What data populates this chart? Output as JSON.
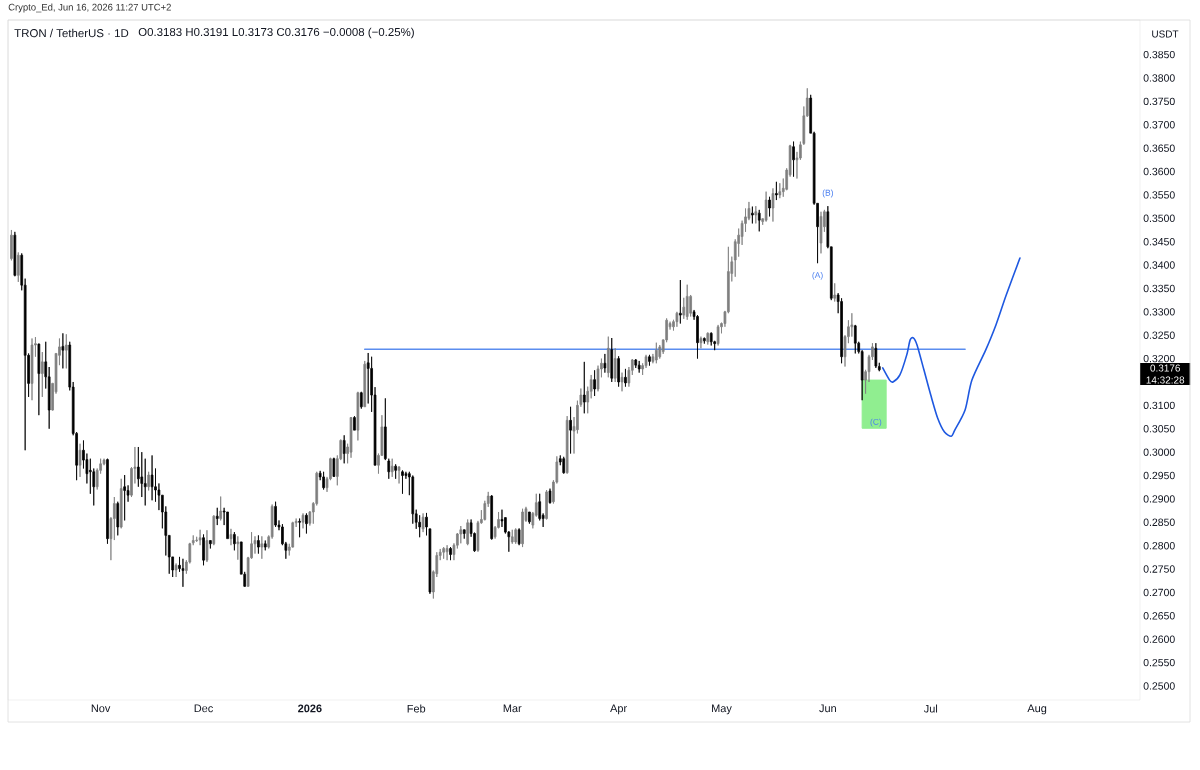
{
  "chart_data": {
    "type": "candlestick",
    "title": "TRON / TetherUS · 1D",
    "subtitle": "O0.3183 H0.3191 L0.3173 C0.3176 −0.0008 (−0.25%)",
    "ylabel": "USDT",
    "x": [
      "2025-10-06",
      "2025-10-07",
      "2025-10-08",
      "2025-10-09",
      "2025-10-10",
      "2025-10-11",
      "2025-10-12",
      "2025-10-13",
      "2025-10-14",
      "2025-10-15",
      "2025-10-16",
      "2025-10-17",
      "2025-10-18",
      "2025-10-19",
      "2025-10-20",
      "2025-10-21",
      "2025-10-22",
      "2025-10-23",
      "2025-10-24",
      "2025-10-25",
      "2025-10-26",
      "2025-10-27",
      "2025-10-28",
      "2025-10-29",
      "2025-10-30",
      "2025-10-31",
      "2025-11-01",
      "2025-11-02",
      "2025-11-03",
      "2025-11-04",
      "2025-11-05",
      "2025-11-06",
      "2025-11-07",
      "2025-11-08",
      "2025-11-09",
      "2025-11-10",
      "2025-11-11",
      "2025-11-12",
      "2025-11-13",
      "2025-11-14",
      "2025-11-15",
      "2025-11-16",
      "2025-11-17",
      "2025-11-18",
      "2025-11-19",
      "2025-11-20",
      "2025-11-21",
      "2025-11-22",
      "2025-11-23",
      "2025-11-24",
      "2025-11-25",
      "2025-11-26",
      "2025-11-27",
      "2025-11-28",
      "2025-11-29",
      "2025-11-30",
      "2025-12-01",
      "2025-12-02",
      "2025-12-03",
      "2025-12-04",
      "2025-12-05",
      "2025-12-06",
      "2025-12-07",
      "2025-12-08",
      "2025-12-09",
      "2025-12-10",
      "2025-12-11",
      "2025-12-12",
      "2025-12-13",
      "2025-12-14",
      "2025-12-15",
      "2025-12-16",
      "2025-12-17",
      "2025-12-18",
      "2025-12-19",
      "2025-12-20",
      "2025-12-21",
      "2025-12-22",
      "2025-12-23",
      "2025-12-24",
      "2025-12-25",
      "2025-12-26",
      "2025-12-27",
      "2025-12-28",
      "2025-12-29",
      "2025-12-30",
      "2025-12-31",
      "2026-01-01",
      "2026-01-02",
      "2026-01-03",
      "2026-01-04",
      "2026-01-05",
      "2026-01-06",
      "2026-01-07",
      "2026-01-08",
      "2026-01-09",
      "2026-01-10",
      "2026-01-11",
      "2026-01-12",
      "2026-01-13",
      "2026-01-14",
      "2026-01-15",
      "2026-01-16",
      "2026-01-17",
      "2026-01-18",
      "2026-01-19",
      "2026-01-20",
      "2026-01-21",
      "2026-01-22",
      "2026-01-23",
      "2026-01-24",
      "2026-01-25",
      "2026-01-26",
      "2026-01-27",
      "2026-01-28",
      "2026-01-29",
      "2026-01-30",
      "2026-01-31",
      "2026-02-01",
      "2026-02-02",
      "2026-02-03",
      "2026-02-04",
      "2026-02-05",
      "2026-02-06",
      "2026-02-07",
      "2026-02-08",
      "2026-02-09",
      "2026-02-10",
      "2026-02-11",
      "2026-02-12",
      "2026-02-13",
      "2026-02-14",
      "2026-02-15",
      "2026-02-16",
      "2026-02-17",
      "2026-02-18",
      "2026-02-19",
      "2026-02-20",
      "2026-02-21",
      "2026-02-22",
      "2026-02-23",
      "2026-02-24",
      "2026-02-25",
      "2026-02-26",
      "2026-02-27",
      "2026-02-28",
      "2026-03-01",
      "2026-03-02",
      "2026-03-03",
      "2026-03-04",
      "2026-03-05",
      "2026-03-06",
      "2026-03-07",
      "2026-03-08",
      "2026-03-09",
      "2026-03-10",
      "2026-03-11",
      "2026-03-12",
      "2026-03-13",
      "2026-03-14",
      "2026-03-15",
      "2026-03-16",
      "2026-03-17",
      "2026-03-18",
      "2026-03-19",
      "2026-03-20",
      "2026-03-21",
      "2026-03-22",
      "2026-03-23",
      "2026-03-24",
      "2026-03-25",
      "2026-03-26",
      "2026-03-27",
      "2026-03-28",
      "2026-03-29",
      "2026-03-30",
      "2026-03-31",
      "2026-04-01",
      "2026-04-02",
      "2026-04-03",
      "2026-04-04",
      "2026-04-05",
      "2026-04-06",
      "2026-04-07",
      "2026-04-08",
      "2026-04-09",
      "2026-04-10",
      "2026-04-11",
      "2026-04-12",
      "2026-04-13",
      "2026-04-14",
      "2026-04-15",
      "2026-04-16",
      "2026-04-17",
      "2026-04-18",
      "2026-04-19",
      "2026-04-20",
      "2026-04-21",
      "2026-04-22",
      "2026-04-23",
      "2026-04-24",
      "2026-04-25",
      "2026-04-26",
      "2026-04-27",
      "2026-04-28",
      "2026-04-29",
      "2026-04-30",
      "2026-05-01",
      "2026-05-02",
      "2026-05-03",
      "2026-05-04",
      "2026-05-05",
      "2026-05-06",
      "2026-05-07",
      "2026-05-08",
      "2026-05-09",
      "2026-05-10",
      "2026-05-11",
      "2026-05-12",
      "2026-05-13",
      "2026-05-14",
      "2026-05-15",
      "2026-05-16",
      "2026-05-17",
      "2026-05-18",
      "2026-05-19",
      "2026-05-20",
      "2026-05-21",
      "2026-05-22",
      "2026-05-23",
      "2026-05-24",
      "2026-05-25",
      "2026-05-26",
      "2026-05-27",
      "2026-05-28",
      "2026-05-29",
      "2026-05-30",
      "2026-05-31",
      "2026-06-01",
      "2026-06-02",
      "2026-06-03",
      "2026-06-04",
      "2026-06-05",
      "2026-06-06",
      "2026-06-07",
      "2026-06-08",
      "2026-06-09",
      "2026-06-10",
      "2026-06-11",
      "2026-06-12",
      "2026-06-13",
      "2026-06-14",
      "2026-06-15",
      "2026-06-16"
    ],
    "ohlc": [
      [
        0.3414,
        0.3475,
        0.341,
        0.3464
      ],
      [
        0.3464,
        0.3471,
        0.3376,
        0.3378
      ],
      [
        0.3378,
        0.3427,
        0.3364,
        0.3421
      ],
      [
        0.3421,
        0.3425,
        0.3346,
        0.3357
      ],
      [
        0.3357,
        0.3371,
        0.3004,
        0.3207
      ],
      [
        0.3207,
        0.3211,
        0.3118,
        0.3147
      ],
      [
        0.3147,
        0.3243,
        0.3111,
        0.3229
      ],
      [
        0.3229,
        0.3246,
        0.3204,
        0.3232
      ],
      [
        0.3231,
        0.3232,
        0.3079,
        0.3168
      ],
      [
        0.3168,
        0.3214,
        0.3118,
        0.3193
      ],
      [
        0.3193,
        0.3236,
        0.3136,
        0.3161
      ],
      [
        0.3161,
        0.3182,
        0.305,
        0.309
      ],
      [
        0.309,
        0.3148,
        0.3089,
        0.3147
      ],
      [
        0.3129,
        0.3211,
        0.3125,
        0.3211
      ],
      [
        0.3207,
        0.3243,
        0.3186,
        0.3225
      ],
      [
        0.3226,
        0.3254,
        0.3179,
        0.3218
      ],
      [
        0.3218,
        0.3252,
        0.3179,
        0.3229
      ],
      [
        0.3229,
        0.3236,
        0.3132,
        0.3139
      ],
      [
        0.3139,
        0.315,
        0.3036,
        0.304
      ],
      [
        0.304,
        0.3043,
        0.294,
        0.2972
      ],
      [
        0.2972,
        0.3018,
        0.2947,
        0.3004
      ],
      [
        0.3004,
        0.3025,
        0.2965,
        0.2983
      ],
      [
        0.2984,
        0.2997,
        0.2933,
        0.2954
      ],
      [
        0.2961,
        0.2986,
        0.2911,
        0.2958
      ],
      [
        0.2958,
        0.2965,
        0.2886,
        0.2926
      ],
      [
        0.2926,
        0.2965,
        0.292,
        0.2961
      ],
      [
        0.2961,
        0.2986,
        0.2954,
        0.2975
      ],
      [
        0.2975,
        0.2986,
        0.2972,
        0.2983
      ],
      [
        0.2984,
        0.2986,
        0.2804,
        0.2815
      ],
      [
        0.2815,
        0.2861,
        0.2769,
        0.2858
      ],
      [
        0.2858,
        0.2904,
        0.2812,
        0.289
      ],
      [
        0.289,
        0.2894,
        0.2822,
        0.284
      ],
      [
        0.284,
        0.2943,
        0.2837,
        0.2922
      ],
      [
        0.2926,
        0.2951,
        0.2854,
        0.2918
      ],
      [
        0.2918,
        0.2929,
        0.2894,
        0.2908
      ],
      [
        0.2908,
        0.2968,
        0.2904,
        0.2965
      ],
      [
        0.2965,
        0.3011,
        0.2933,
        0.2968
      ],
      [
        0.2968,
        0.3011,
        0.2926,
        0.2943
      ],
      [
        0.2947,
        0.3,
        0.2904,
        0.2933
      ],
      [
        0.2933,
        0.2986,
        0.2886,
        0.2926
      ],
      [
        0.2926,
        0.2958,
        0.2918,
        0.2951
      ],
      [
        0.2951,
        0.2993,
        0.2897,
        0.2926
      ],
      [
        0.2926,
        0.2965,
        0.2894,
        0.2919
      ],
      [
        0.2919,
        0.2933,
        0.2876,
        0.2908
      ],
      [
        0.2908,
        0.2908,
        0.2837,
        0.2872
      ],
      [
        0.2872,
        0.2884,
        0.2779,
        0.2822
      ],
      [
        0.2822,
        0.2822,
        0.274,
        0.2776
      ],
      [
        0.2776,
        0.2776,
        0.2733,
        0.2748
      ],
      [
        0.2748,
        0.2762,
        0.2733,
        0.2758
      ],
      [
        0.2758,
        0.2776,
        0.2744,
        0.2751
      ],
      [
        0.2751,
        0.2772,
        0.2712,
        0.2747
      ],
      [
        0.2747,
        0.2769,
        0.274,
        0.2765
      ],
      [
        0.2765,
        0.2806,
        0.2762,
        0.2804
      ],
      [
        0.2806,
        0.2822,
        0.2801,
        0.2811
      ],
      [
        0.2811,
        0.2819,
        0.2808,
        0.2812
      ],
      [
        0.2812,
        0.2834,
        0.2801,
        0.2817
      ],
      [
        0.2817,
        0.2824,
        0.2758,
        0.2769
      ],
      [
        0.2769,
        0.2833,
        0.2765,
        0.2811
      ],
      [
        0.2811,
        0.2811,
        0.2794,
        0.2804
      ],
      [
        0.2804,
        0.2865,
        0.2801,
        0.2863
      ],
      [
        0.2863,
        0.2881,
        0.2844,
        0.2858
      ],
      [
        0.2858,
        0.2905,
        0.2854,
        0.2874
      ],
      [
        0.2874,
        0.2881,
        0.2844,
        0.2872
      ],
      [
        0.2872,
        0.2872,
        0.2815,
        0.2815
      ],
      [
        0.2815,
        0.2836,
        0.2801,
        0.2824
      ],
      [
        0.2824,
        0.2829,
        0.279,
        0.2804
      ],
      [
        0.2804,
        0.282,
        0.277,
        0.2808
      ],
      [
        0.2808,
        0.2808,
        0.2739,
        0.2739
      ],
      [
        0.2739,
        0.2744,
        0.2712,
        0.2713
      ],
      [
        0.2713,
        0.2776,
        0.2712,
        0.2774
      ],
      [
        0.2774,
        0.2829,
        0.2772,
        0.2804
      ],
      [
        0.2804,
        0.282,
        0.2783,
        0.2811
      ],
      [
        0.2811,
        0.2822,
        0.2783,
        0.2797
      ],
      [
        0.2797,
        0.282,
        0.2772,
        0.2804
      ],
      [
        0.2804,
        0.2811,
        0.279,
        0.2797
      ],
      [
        0.2797,
        0.2822,
        0.2794,
        0.2819
      ],
      [
        0.2819,
        0.2888,
        0.2815,
        0.2884
      ],
      [
        0.2884,
        0.2894,
        0.284,
        0.2844
      ],
      [
        0.2844,
        0.2854,
        0.2833,
        0.284
      ],
      [
        0.284,
        0.2846,
        0.2801,
        0.2804
      ],
      [
        0.2804,
        0.2808,
        0.2772,
        0.279
      ],
      [
        0.279,
        0.2804,
        0.2779,
        0.2797
      ],
      [
        0.2797,
        0.2851,
        0.2796,
        0.2849
      ],
      [
        0.2849,
        0.2858,
        0.284,
        0.2852
      ],
      [
        0.2852,
        0.2858,
        0.2818,
        0.285
      ],
      [
        0.285,
        0.2869,
        0.2837,
        0.2865
      ],
      [
        0.2865,
        0.2869,
        0.2826,
        0.2847
      ],
      [
        0.2848,
        0.2874,
        0.2843,
        0.2872
      ],
      [
        0.2872,
        0.2893,
        0.2847,
        0.289
      ],
      [
        0.289,
        0.2958,
        0.2886,
        0.2955
      ],
      [
        0.2955,
        0.296,
        0.294,
        0.2947
      ],
      [
        0.2947,
        0.2958,
        0.292,
        0.2924
      ],
      [
        0.2924,
        0.2947,
        0.2915,
        0.2943
      ],
      [
        0.2943,
        0.2988,
        0.294,
        0.2986
      ],
      [
        0.2986,
        0.2988,
        0.2947,
        0.2948
      ],
      [
        0.2948,
        0.2993,
        0.2929,
        0.2986
      ],
      [
        0.2986,
        0.3027,
        0.2983,
        0.3025
      ],
      [
        0.3025,
        0.3036,
        0.2976,
        0.2997
      ],
      [
        0.2997,
        0.3018,
        0.2976,
        0.3011
      ],
      [
        0.3,
        0.3075,
        0.2988,
        0.3074
      ],
      [
        0.3074,
        0.3077,
        0.3047,
        0.3047
      ],
      [
        0.3047,
        0.3129,
        0.3025,
        0.3127
      ],
      [
        0.3127,
        0.3129,
        0.3093,
        0.3097
      ],
      [
        0.3097,
        0.3195,
        0.3097,
        0.3188
      ],
      [
        0.3191,
        0.3212,
        0.3104,
        0.3179
      ],
      [
        0.3179,
        0.3204,
        0.3086,
        0.3122
      ],
      [
        0.3122,
        0.3139,
        0.2972,
        0.2972
      ],
      [
        0.2972,
        0.2997,
        0.2954,
        0.2993
      ],
      [
        0.2993,
        0.3079,
        0.2993,
        0.3054
      ],
      [
        0.3054,
        0.3115,
        0.2983,
        0.2986
      ],
      [
        0.2981,
        0.2986,
        0.2943,
        0.2958
      ],
      [
        0.2958,
        0.2986,
        0.2947,
        0.297
      ],
      [
        0.297,
        0.2974,
        0.2943,
        0.2961
      ],
      [
        0.2961,
        0.297,
        0.2933,
        0.2968
      ],
      [
        0.2958,
        0.2961,
        0.2911,
        0.295
      ],
      [
        0.2954,
        0.2958,
        0.2943,
        0.295
      ],
      [
        0.2954,
        0.2958,
        0.2908,
        0.2947
      ],
      [
        0.2947,
        0.295,
        0.2847,
        0.2868
      ],
      [
        0.2868,
        0.2877,
        0.2836,
        0.285
      ],
      [
        0.285,
        0.2865,
        0.2818,
        0.284
      ],
      [
        0.2836,
        0.2869,
        0.2829,
        0.2861
      ],
      [
        0.2861,
        0.287,
        0.2822,
        0.284
      ],
      [
        0.2836,
        0.2836,
        0.2697,
        0.2701
      ],
      [
        0.2701,
        0.2747,
        0.2687,
        0.2744
      ],
      [
        0.274,
        0.2786,
        0.2733,
        0.2779
      ],
      [
        0.2779,
        0.2793,
        0.2769,
        0.2786
      ],
      [
        0.2786,
        0.2797,
        0.2772,
        0.2794
      ],
      [
        0.2787,
        0.2801,
        0.2769,
        0.2794
      ],
      [
        0.2794,
        0.2797,
        0.2769,
        0.2781
      ],
      [
        0.2781,
        0.2805,
        0.2769,
        0.2801
      ],
      [
        0.2801,
        0.2827,
        0.2794,
        0.2825
      ],
      [
        0.2825,
        0.2842,
        0.2805,
        0.2834
      ],
      [
        0.2834,
        0.2834,
        0.2815,
        0.2826
      ],
      [
        0.2804,
        0.2856,
        0.2801,
        0.2849
      ],
      [
        0.2849,
        0.2856,
        0.2819,
        0.2826
      ],
      [
        0.2826,
        0.2828,
        0.2787,
        0.2789
      ],
      [
        0.279,
        0.2853,
        0.2787,
        0.2849
      ],
      [
        0.2849,
        0.2876,
        0.2847,
        0.2856
      ],
      [
        0.2856,
        0.2896,
        0.2854,
        0.289
      ],
      [
        0.289,
        0.2915,
        0.2883,
        0.2906
      ],
      [
        0.2906,
        0.2908,
        0.2813,
        0.2815
      ],
      [
        0.2819,
        0.2842,
        0.2815,
        0.2839
      ],
      [
        0.2839,
        0.2872,
        0.2837,
        0.2856
      ],
      [
        0.2856,
        0.2877,
        0.284,
        0.2853
      ],
      [
        0.286,
        0.286,
        0.2826,
        0.2829
      ],
      [
        0.2829,
        0.2831,
        0.2787,
        0.2819
      ],
      [
        0.2808,
        0.2834,
        0.2804,
        0.2819
      ],
      [
        0.2808,
        0.2837,
        0.2804,
        0.2834
      ],
      [
        0.2834,
        0.2837,
        0.2801,
        0.2804
      ],
      [
        0.2804,
        0.2879,
        0.2797,
        0.2872
      ],
      [
        0.2854,
        0.2883,
        0.2851,
        0.2879
      ],
      [
        0.2872,
        0.2872,
        0.2847,
        0.2851
      ],
      [
        0.2844,
        0.2872,
        0.2837,
        0.2869
      ],
      [
        0.2865,
        0.2911,
        0.2862,
        0.2892
      ],
      [
        0.2894,
        0.2911,
        0.2854,
        0.2858
      ],
      [
        0.2865,
        0.2869,
        0.284,
        0.2858
      ],
      [
        0.2858,
        0.2919,
        0.2856,
        0.2915
      ],
      [
        0.2917,
        0.2922,
        0.289,
        0.2892
      ],
      [
        0.2894,
        0.294,
        0.289,
        0.2936
      ],
      [
        0.2936,
        0.2991,
        0.2933,
        0.2979
      ],
      [
        0.2986,
        0.2993,
        0.2972,
        0.2979
      ],
      [
        0.2986,
        0.299,
        0.2954,
        0.2956
      ],
      [
        0.2956,
        0.3077,
        0.2954,
        0.3068
      ],
      [
        0.3068,
        0.3097,
        0.2997,
        0.3047
      ],
      [
        0.3045,
        0.3075,
        0.2997,
        0.3055
      ],
      [
        0.3048,
        0.311,
        0.304,
        0.31
      ],
      [
        0.3102,
        0.3136,
        0.3097,
        0.3122
      ],
      [
        0.3122,
        0.3193,
        0.3083,
        0.3107
      ],
      [
        0.3107,
        0.314,
        0.3083,
        0.313
      ],
      [
        0.313,
        0.3165,
        0.3115,
        0.3155
      ],
      [
        0.3155,
        0.3175,
        0.312,
        0.3135
      ],
      [
        0.3135,
        0.3185,
        0.313,
        0.3178
      ],
      [
        0.3178,
        0.32,
        0.316,
        0.319
      ],
      [
        0.319,
        0.321,
        0.317,
        0.318
      ],
      [
        0.317,
        0.3247,
        0.316,
        0.3222
      ],
      [
        0.3219,
        0.3244,
        0.315,
        0.3158
      ],
      [
        0.3158,
        0.3222,
        0.315,
        0.32
      ],
      [
        0.32,
        0.3205,
        0.314,
        0.315
      ],
      [
        0.315,
        0.317,
        0.313,
        0.316
      ],
      [
        0.316,
        0.3178,
        0.314,
        0.3148
      ],
      [
        0.3148,
        0.3182,
        0.314,
        0.3175
      ],
      [
        0.3175,
        0.3199,
        0.3165,
        0.3197
      ],
      [
        0.3197,
        0.3199,
        0.318,
        0.3186
      ],
      [
        0.3186,
        0.3195,
        0.317,
        0.3178
      ],
      [
        0.3178,
        0.319,
        0.3165,
        0.3185
      ],
      [
        0.3185,
        0.3208,
        0.318,
        0.3204
      ],
      [
        0.3204,
        0.3208,
        0.3185,
        0.3194
      ],
      [
        0.3194,
        0.321,
        0.319,
        0.3204
      ],
      [
        0.3197,
        0.3234,
        0.319,
        0.3218
      ],
      [
        0.3204,
        0.3229,
        0.32,
        0.3225
      ],
      [
        0.3215,
        0.3241,
        0.321,
        0.324
      ],
      [
        0.324,
        0.3286,
        0.3235,
        0.3282
      ],
      [
        0.3268,
        0.3279,
        0.3262,
        0.3275
      ],
      [
        0.3268,
        0.3283,
        0.326,
        0.3279
      ],
      [
        0.3279,
        0.33,
        0.3268,
        0.3297
      ],
      [
        0.3297,
        0.3368,
        0.3275,
        0.3293
      ],
      [
        0.3293,
        0.333,
        0.3285,
        0.331
      ],
      [
        0.329,
        0.3358,
        0.3283,
        0.3333
      ],
      [
        0.3297,
        0.3336,
        0.329,
        0.3333
      ],
      [
        0.33,
        0.3304,
        0.3283,
        0.329
      ],
      [
        0.329,
        0.3293,
        0.32,
        0.3234
      ],
      [
        0.3234,
        0.3247,
        0.3222,
        0.3243
      ],
      [
        0.3243,
        0.3245,
        0.3232,
        0.3238
      ],
      [
        0.3236,
        0.3256,
        0.323,
        0.3254
      ],
      [
        0.3254,
        0.3256,
        0.3228,
        0.3236
      ],
      [
        0.3236,
        0.3238,
        0.3218,
        0.3232
      ],
      [
        0.3232,
        0.3272,
        0.3228,
        0.3268
      ],
      [
        0.3268,
        0.3277,
        0.3254,
        0.3275
      ],
      [
        0.3275,
        0.3302,
        0.3268,
        0.33
      ],
      [
        0.33,
        0.3439,
        0.3297,
        0.3386
      ],
      [
        0.3382,
        0.3418,
        0.3365,
        0.3407
      ],
      [
        0.3411,
        0.3455,
        0.3375,
        0.345
      ],
      [
        0.3446,
        0.3478,
        0.3418,
        0.3464
      ],
      [
        0.3461,
        0.3495,
        0.3443,
        0.3489
      ],
      [
        0.3489,
        0.3521,
        0.3471,
        0.3503
      ],
      [
        0.35,
        0.3535,
        0.3496,
        0.3521
      ],
      [
        0.3511,
        0.3525,
        0.3489,
        0.3507
      ],
      [
        0.3507,
        0.3526,
        0.3489,
        0.3514
      ],
      [
        0.3511,
        0.3518,
        0.3472,
        0.3496
      ],
      [
        0.3493,
        0.35,
        0.3486,
        0.3499
      ],
      [
        0.3496,
        0.3557,
        0.3493,
        0.3539
      ],
      [
        0.3539,
        0.3546,
        0.3504,
        0.3522
      ],
      [
        0.3522,
        0.3564,
        0.3493,
        0.3553
      ],
      [
        0.3553,
        0.3578,
        0.3539,
        0.355
      ],
      [
        0.355,
        0.3575,
        0.3543,
        0.3557
      ],
      [
        0.3557,
        0.3585,
        0.3546,
        0.3564
      ],
      [
        0.3562,
        0.3607,
        0.356,
        0.3603
      ],
      [
        0.3593,
        0.3657,
        0.3589,
        0.3655
      ],
      [
        0.3653,
        0.3664,
        0.3589,
        0.3625
      ],
      [
        0.3625,
        0.3642,
        0.3585,
        0.3629
      ],
      [
        0.3629,
        0.3664,
        0.3625,
        0.3657
      ],
      [
        0.366,
        0.3739,
        0.3657,
        0.3719
      ],
      [
        0.3719,
        0.3778,
        0.3717,
        0.3757
      ],
      [
        0.3757,
        0.3764,
        0.3682,
        0.3682
      ],
      [
        0.3682,
        0.3685,
        0.3529,
        0.3532
      ],
      [
        0.3532,
        0.3532,
        0.3404,
        0.3482
      ],
      [
        0.3447,
        0.3514,
        0.3425,
        0.3504
      ],
      [
        0.3482,
        0.3518,
        0.3471,
        0.3514
      ],
      [
        0.3514,
        0.3526,
        0.3436,
        0.3439
      ],
      [
        0.3439,
        0.3439,
        0.3325,
        0.3329
      ],
      [
        0.3329,
        0.3361,
        0.3322,
        0.3336
      ],
      [
        0.3336,
        0.334,
        0.3297,
        0.3322
      ],
      [
        0.3322,
        0.3329,
        0.319,
        0.3204
      ],
      [
        0.3204,
        0.325,
        0.3183,
        0.3247
      ],
      [
        0.3247,
        0.3282,
        0.3233,
        0.3268
      ],
      [
        0.3268,
        0.3297,
        0.3247,
        0.3272
      ],
      [
        0.327,
        0.3272,
        0.3211,
        0.3233
      ],
      [
        0.3233,
        0.3236,
        0.3211,
        0.3215
      ],
      [
        0.3215,
        0.3218,
        0.3111,
        0.3154
      ],
      [
        0.3154,
        0.3176,
        0.3125,
        0.3172
      ],
      [
        0.3172,
        0.3208,
        0.315,
        0.3204
      ],
      [
        0.3204,
        0.3233,
        0.3197,
        0.3225
      ],
      [
        0.3222,
        0.3233,
        0.318,
        0.3184
      ],
      [
        0.3183,
        0.3191,
        0.3173,
        0.3176
      ]
    ],
    "colors": [
      "#7f7f7f",
      "#000000",
      "#7f7f7f",
      "#000000",
      "#000000",
      "#000000",
      "#7f7f7f",
      "#7f7f7f",
      "#000000",
      "#7f7f7f",
      "#000000",
      "#000000",
      "#7f7f7f",
      "#7f7f7f",
      "#7f7f7f",
      "#000000",
      "#7f7f7f",
      "#000000",
      "#000000",
      "#000000",
      "#7f7f7f",
      "#000000",
      "#000000",
      "#000000",
      "#000000",
      "#7f7f7f",
      "#7f7f7f",
      "#7f7f7f",
      "#000000",
      "#7f7f7f",
      "#7f7f7f",
      "#000000",
      "#7f7f7f",
      "#000000",
      "#000000",
      "#7f7f7f",
      "#7f7f7f",
      "#000000",
      "#000000",
      "#000000",
      "#7f7f7f",
      "#000000",
      "#000000",
      "#000000",
      "#000000",
      "#000000",
      "#000000",
      "#000000",
      "#7f7f7f",
      "#000000",
      "#000000",
      "#7f7f7f",
      "#7f7f7f",
      "#7f7f7f",
      "#7f7f7f",
      "#7f7f7f",
      "#000000",
      "#7f7f7f",
      "#000000",
      "#7f7f7f",
      "#000000",
      "#7f7f7f",
      "#000000",
      "#000000",
      "#7f7f7f",
      "#000000",
      "#7f7f7f",
      "#000000",
      "#000000",
      "#7f7f7f",
      "#7f7f7f",
      "#7f7f7f",
      "#000000",
      "#7f7f7f",
      "#000000",
      "#7f7f7f",
      "#7f7f7f",
      "#000000",
      "#000000",
      "#000000",
      "#000000",
      "#7f7f7f",
      "#7f7f7f",
      "#7f7f7f",
      "#000000",
      "#7f7f7f",
      "#000000",
      "#7f7f7f",
      "#7f7f7f",
      "#7f7f7f",
      "#000000",
      "#000000",
      "#7f7f7f",
      "#7f7f7f",
      "#000000",
      "#7f7f7f",
      "#7f7f7f",
      "#000000",
      "#7f7f7f",
      "#7f7f7f",
      "#000000",
      "#7f7f7f",
      "#000000",
      "#7f7f7f",
      "#000000",
      "#000000",
      "#000000",
      "#7f7f7f",
      "#7f7f7f",
      "#000000",
      "#000000",
      "#7f7f7f",
      "#000000",
      "#7f7f7f",
      "#000000",
      "#000000",
      "#000000",
      "#000000",
      "#000000",
      "#000000",
      "#7f7f7f",
      "#000000",
      "#000000",
      "#7f7f7f",
      "#7f7f7f",
      "#7f7f7f",
      "#7f7f7f",
      "#7f7f7f",
      "#000000",
      "#7f7f7f",
      "#7f7f7f",
      "#7f7f7f",
      "#000000",
      "#7f7f7f",
      "#000000",
      "#000000",
      "#7f7f7f",
      "#7f7f7f",
      "#7f7f7f",
      "#7f7f7f",
      "#000000",
      "#7f7f7f",
      "#7f7f7f",
      "#000000",
      "#000000",
      "#000000",
      "#7f7f7f",
      "#7f7f7f",
      "#000000",
      "#7f7f7f",
      "#7f7f7f",
      "#000000",
      "#7f7f7f",
      "#7f7f7f",
      "#000000",
      "#000000",
      "#7f7f7f",
      "#000000",
      "#7f7f7f",
      "#7f7f7f",
      "#000000",
      "#000000",
      "#7f7f7f",
      "#000000",
      "#7f7f7f",
      "#7f7f7f",
      "#7f7f7f",
      "#000000",
      "#7f7f7f",
      "#7f7f7f",
      "#000000",
      "#7f7f7f",
      "#7f7f7f",
      "#000000",
      "#7f7f7f",
      "#000000",
      "#7f7f7f",
      "#000000",
      "#7f7f7f",
      "#000000",
      "#7f7f7f",
      "#7f7f7f",
      "#000000",
      "#000000",
      "#7f7f7f",
      "#7f7f7f",
      "#000000",
      "#7f7f7f",
      "#7f7f7f",
      "#7f7f7f",
      "#7f7f7f",
      "#7f7f7f",
      "#7f7f7f",
      "#7f7f7f",
      "#7f7f7f",
      "#000000",
      "#7f7f7f",
      "#7f7f7f",
      "#7f7f7f",
      "#000000",
      "#000000",
      "#7f7f7f",
      "#000000",
      "#7f7f7f",
      "#000000",
      "#000000",
      "#7f7f7f",
      "#7f7f7f",
      "#7f7f7f",
      "#7f7f7f",
      "#7f7f7f",
      "#7f7f7f",
      "#7f7f7f",
      "#7f7f7f",
      "#7f7f7f",
      "#7f7f7f",
      "#000000",
      "#7f7f7f",
      "#000000",
      "#7f7f7f",
      "#7f7f7f",
      "#000000",
      "#7f7f7f",
      "#000000",
      "#7f7f7f",
      "#7f7f7f",
      "#7f7f7f",
      "#7f7f7f",
      "#000000",
      "#7f7f7f",
      "#7f7f7f",
      "#7f7f7f",
      "#7f7f7f",
      "#000000",
      "#000000",
      "#000000",
      "#7f7f7f",
      "#7f7f7f",
      "#000000",
      "#000000",
      "#7f7f7f",
      "#000000",
      "#000000",
      "#7f7f7f",
      "#7f7f7f",
      "#7f7f7f",
      "#000000",
      "#000000",
      "#000000",
      "#7f7f7f",
      "#7f7f7f",
      "#7f7f7f",
      "#000000",
      "#000000"
    ],
    "series": [
      {
        "type": "line",
        "x": [
          "2026-01-17",
          "2026-07-11"
        ],
        "values": [
          0.322,
          0.322
        ],
        "color": "#5b8def"
      },
      {
        "type": "line",
        "x": [
          "2026-06-17",
          "2026-06-19",
          "2026-06-20",
          "2026-06-22",
          "2026-06-24",
          "2026-06-25",
          "2026-06-26",
          "2026-06-27",
          "2026-06-29",
          "2026-07-01",
          "2026-07-03",
          "2026-07-05",
          "2026-07-07",
          "2026-07-08",
          "2026-07-11",
          "2026-07-13",
          "2026-07-17",
          "2026-07-20",
          "2026-07-23",
          "2026-07-27"
        ],
        "values": [
          0.318,
          0.3154,
          0.315,
          0.3165,
          0.3208,
          0.324,
          0.3244,
          0.3229,
          0.3176,
          0.3122,
          0.3073,
          0.3043,
          0.3034,
          0.3047,
          0.309,
          0.3154,
          0.3218,
          0.3272,
          0.3336,
          0.3415
        ],
        "color": "#1e58e0"
      },
      {
        "type": "area",
        "x": [
          "2026-06-11",
          "2026-06-18"
        ],
        "values": [
          null,
          null
        ],
        "lower": [
          0.3051,
          0.3051
        ],
        "upper": [
          0.3154,
          0.3154
        ],
        "color": "#90ee90"
      }
    ],
    "annotations": [
      "Crypto_Ed, Jun 16, 2026 11:27 UTC+2",
      "0.3176",
      "14:32:28",
      {
        "text": "(A)",
        "x": "2026-05-29",
        "y": 0.3404
      },
      {
        "text": "(B)",
        "x": "2026-06-01",
        "y": 0.3526
      },
      {
        "text": "(C)",
        "x": "2026-06-15",
        "y": 0.3051
      }
    ],
    "xlim": [
      "2025-10-05",
      "2026-08-31"
    ],
    "xticks": [
      {
        "value": "2025-11-01",
        "label": "Nov"
      },
      {
        "value": "2025-12-01",
        "label": "Dec"
      },
      {
        "value": "2026-01-01",
        "label": "2026"
      },
      {
        "value": "2026-02-01",
        "label": "Feb"
      },
      {
        "value": "2026-03-01",
        "label": "Mar"
      },
      {
        "value": "2026-04-01",
        "label": "Apr"
      },
      {
        "value": "2026-05-01",
        "label": "May"
      },
      {
        "value": "2026-06-01",
        "label": "Jun"
      },
      {
        "value": "2026-07-01",
        "label": "Jul"
      },
      {
        "value": "2026-08-01",
        "label": "Aug"
      }
    ],
    "ylim": [
      0.247,
      0.3924
    ],
    "yticks": [
      {
        "value": 0.25,
        "label": "0.2500"
      },
      {
        "value": 0.255,
        "label": "0.2550"
      },
      {
        "value": 0.26,
        "label": "0.2600"
      },
      {
        "value": 0.265,
        "label": "0.2650"
      },
      {
        "value": 0.27,
        "label": "0.2700"
      },
      {
        "value": 0.275,
        "label": "0.2750"
      },
      {
        "value": 0.28,
        "label": "0.2800"
      },
      {
        "value": 0.285,
        "label": "0.2850"
      },
      {
        "value": 0.29,
        "label": "0.2900"
      },
      {
        "value": 0.295,
        "label": "0.2950"
      },
      {
        "value": 0.3,
        "label": "0.3000"
      },
      {
        "value": 0.305,
        "label": "0.3050"
      },
      {
        "value": 0.31,
        "label": "0.3100"
      },
      {
        "value": 0.32,
        "label": "0.3200"
      },
      {
        "value": 0.325,
        "label": "0.3250"
      },
      {
        "value": 0.33,
        "label": "0.3300"
      },
      {
        "value": 0.335,
        "label": "0.3350"
      },
      {
        "value": 0.34,
        "label": "0.3400"
      },
      {
        "value": 0.345,
        "label": "0.3450"
      },
      {
        "value": 0.35,
        "label": "0.3500"
      },
      {
        "value": 0.355,
        "label": "0.3550"
      },
      {
        "value": 0.36,
        "label": "0.3600"
      },
      {
        "value": 0.365,
        "label": "0.3650"
      },
      {
        "value": 0.37,
        "label": "0.3700"
      },
      {
        "value": 0.375,
        "label": "0.3750"
      },
      {
        "value": 0.38,
        "label": "0.3800"
      },
      {
        "value": 0.385,
        "label": "0.3850"
      }
    ]
  }
}
